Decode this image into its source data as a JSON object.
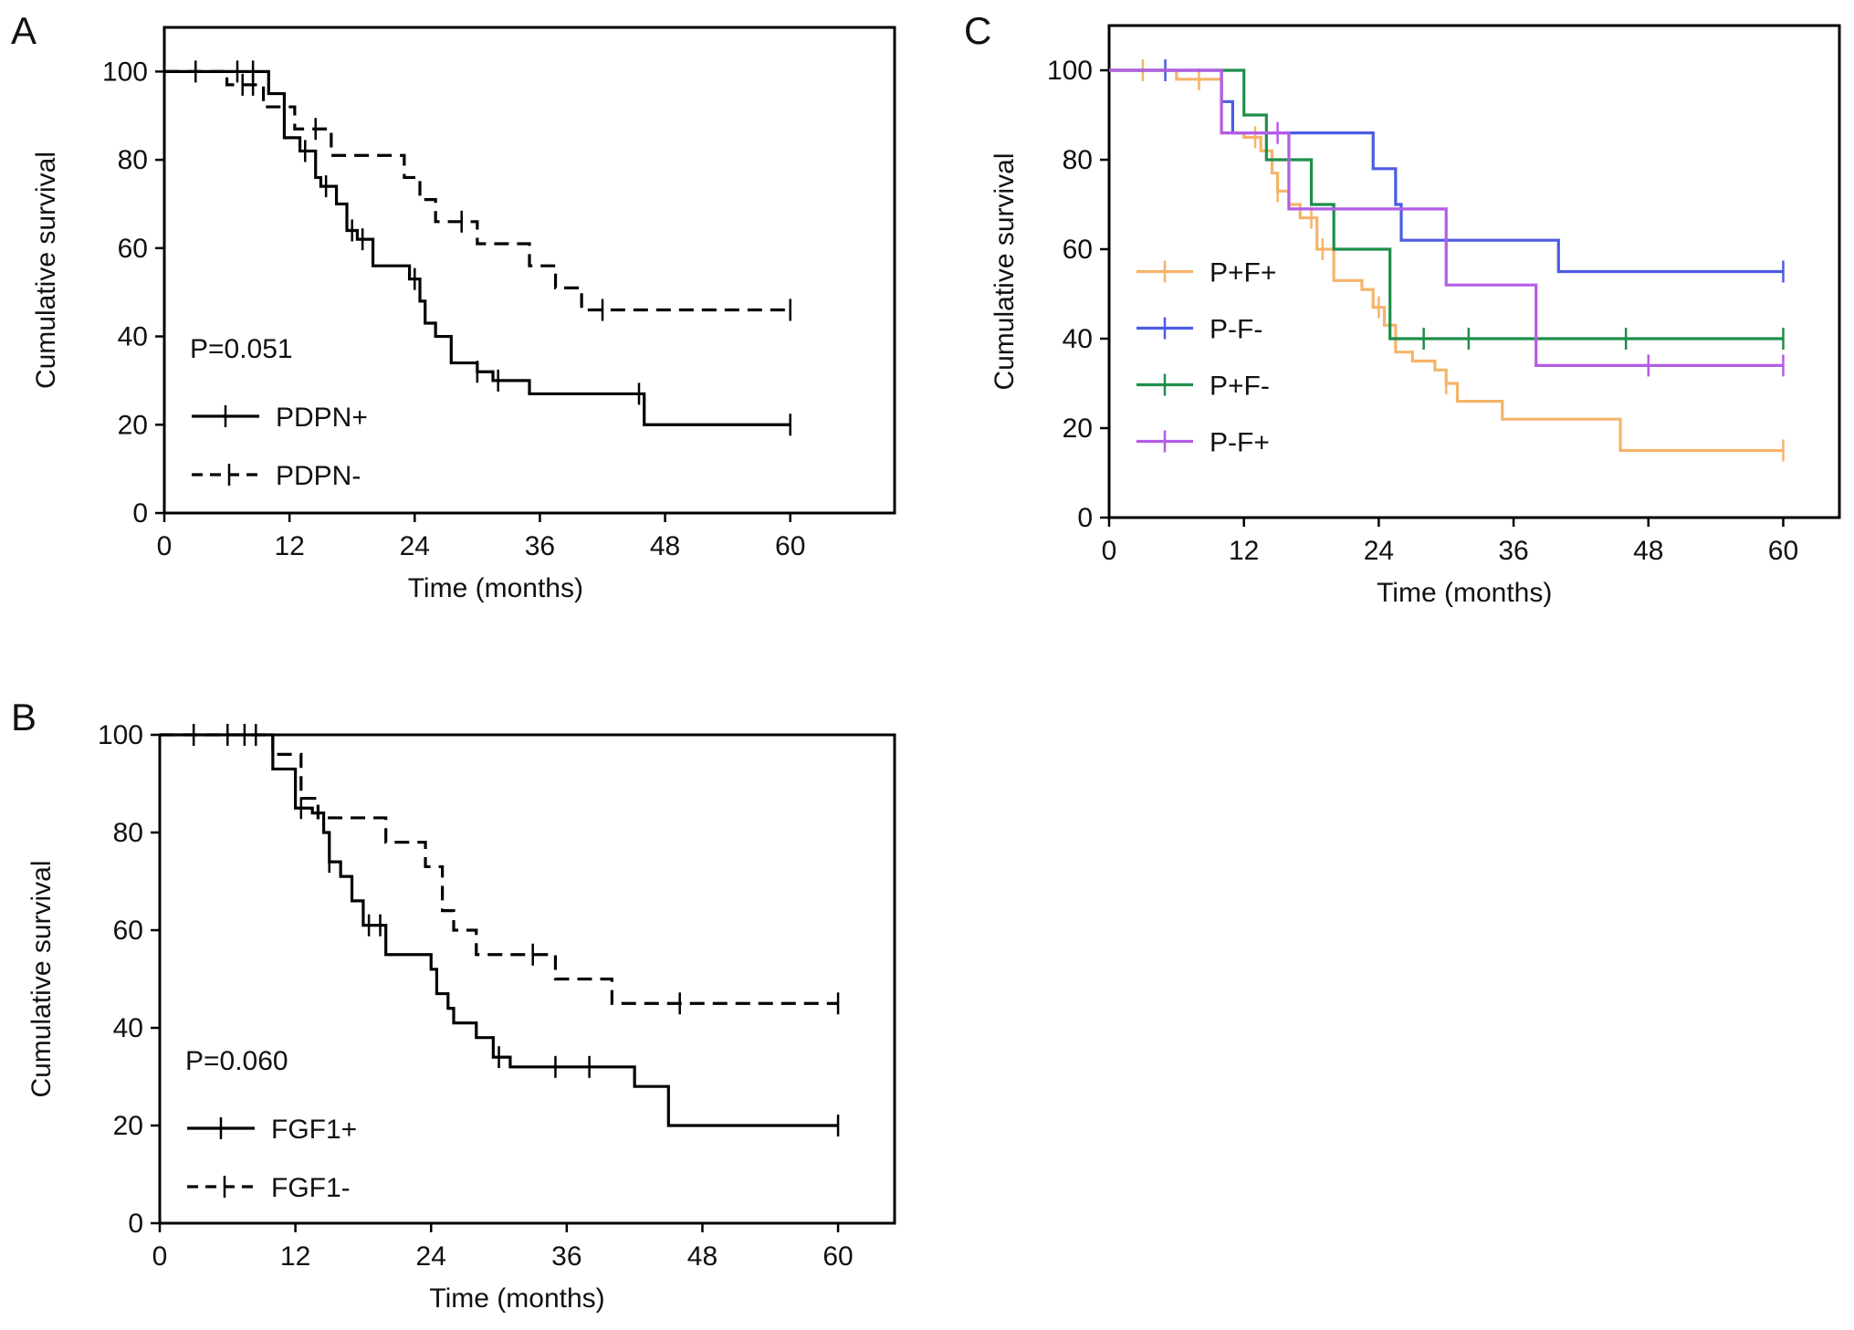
{
  "chart_data": [
    {
      "panel": "A",
      "type": "line",
      "subtype": "kaplan-meier",
      "xlabel": "Time (months)",
      "ylabel": "Cumulative survival",
      "xlim": [
        0,
        70
      ],
      "ylim": [
        0,
        110
      ],
      "xticks": [
        0,
        12,
        24,
        36,
        48,
        60
      ],
      "yticks": [
        0,
        20,
        40,
        60,
        80,
        100
      ],
      "annotation": "P=0.051",
      "legend_position": "bottom-left",
      "series": [
        {
          "name": "PDPN+",
          "color": "#000000",
          "style": "solid",
          "x": [
            0,
            10,
            11.5,
            13,
            14.5,
            15,
            16.5,
            17.5,
            18.5,
            20,
            23.5,
            24.5,
            25,
            26,
            27.5,
            30,
            31.5,
            35,
            45,
            46,
            60
          ],
          "y": [
            100,
            95,
            85,
            82,
            76,
            74,
            70,
            64,
            62,
            56,
            53,
            48,
            43,
            40,
            34,
            32,
            30,
            27,
            27,
            20,
            20
          ],
          "censored_x": [
            3,
            7,
            8.5,
            13.5,
            15.5,
            18,
            19,
            24,
            30,
            32,
            45.5,
            60
          ]
        },
        {
          "name": "PDPN-",
          "color": "#000000",
          "style": "dashed",
          "x": [
            0,
            6,
            9.5,
            12.5,
            16,
            23,
            24.5,
            26,
            30,
            35,
            37.5,
            40,
            60
          ],
          "y": [
            100,
            97,
            92,
            87,
            81,
            76,
            71,
            66,
            61,
            56,
            51,
            46,
            46
          ],
          "censored_x": [
            7.5,
            8.5,
            14.5,
            28.5,
            42,
            60
          ]
        }
      ]
    },
    {
      "panel": "B",
      "type": "line",
      "subtype": "kaplan-meier",
      "xlabel": "Time (months)",
      "ylabel": "Cumulative survival",
      "xlim": [
        0,
        65
      ],
      "ylim": [
        0,
        100
      ],
      "xticks": [
        0,
        12,
        24,
        36,
        48,
        60
      ],
      "yticks": [
        0,
        20,
        40,
        60,
        80,
        100
      ],
      "annotation": "P=0.060",
      "legend_position": "bottom-left",
      "series": [
        {
          "name": "FGF1+",
          "color": "#000000",
          "style": "solid",
          "x": [
            0,
            10,
            12,
            13.5,
            14.5,
            15,
            16,
            17,
            18,
            20,
            24,
            24.5,
            25.5,
            26,
            28,
            29.5,
            31,
            42,
            45,
            60
          ],
          "y": [
            100,
            93,
            85,
            84,
            80,
            74,
            71,
            66,
            61,
            55,
            52,
            47,
            44,
            41,
            38,
            34,
            32,
            28,
            20,
            20
          ],
          "censored_x": [
            3,
            6,
            8.5,
            12.5,
            15,
            18.5,
            19.5,
            30,
            35,
            38,
            60
          ]
        },
        {
          "name": "FGF1-",
          "color": "#000000",
          "style": "dashed",
          "x": [
            0,
            10,
            12.5,
            14,
            20,
            23.5,
            25,
            26,
            28,
            35,
            40,
            60
          ],
          "y": [
            100,
            96,
            87,
            83,
            78,
            73,
            64,
            60,
            55,
            50,
            45,
            45
          ],
          "censored_x": [
            7.5,
            33,
            46,
            60
          ]
        }
      ]
    },
    {
      "panel": "C",
      "type": "line",
      "subtype": "kaplan-meier",
      "xlabel": "Time (months)",
      "ylabel": "Cumulative survival",
      "xlim": [
        0,
        65
      ],
      "ylim": [
        0,
        110
      ],
      "xticks": [
        0,
        12,
        24,
        36,
        48,
        60
      ],
      "yticks": [
        0,
        20,
        40,
        60,
        80,
        100
      ],
      "legend_position": "left",
      "series": [
        {
          "name": "P+F+",
          "color": "#F5B46A",
          "style": "solid",
          "x": [
            0,
            6,
            10,
            12,
            13.5,
            14.5,
            15,
            16,
            17,
            18.5,
            20,
            22.5,
            23.5,
            24.5,
            25.5,
            27,
            29,
            30,
            31,
            35,
            45.5,
            60
          ],
          "y": [
            100,
            98,
            86,
            85,
            82,
            77,
            73,
            70,
            67,
            60,
            53,
            51,
            47,
            43,
            37,
            35,
            33,
            30,
            26,
            22,
            15,
            15
          ],
          "censored_x": [
            3,
            8,
            13,
            15,
            18,
            19,
            24,
            30,
            60
          ]
        },
        {
          "name": "P-F-",
          "color": "#4C5BE4",
          "style": "solid",
          "x": [
            0,
            10,
            11,
            23.5,
            25.5,
            26,
            40,
            60
          ],
          "y": [
            100,
            93,
            86,
            78,
            70,
            62,
            55,
            55
          ],
          "censored_x": [
            5,
            60
          ]
        },
        {
          "name": "P+F-",
          "color": "#1E8E4A",
          "style": "solid",
          "x": [
            0,
            12,
            14,
            18,
            20,
            25,
            60
          ],
          "y": [
            100,
            90,
            80,
            70,
            60,
            40,
            40
          ],
          "censored_x": [
            28,
            32,
            46,
            60
          ]
        },
        {
          "name": "P-F+",
          "color": "#B45CE6",
          "style": "solid",
          "x": [
            0,
            10,
            16,
            30,
            38,
            60
          ],
          "y": [
            100,
            86,
            69,
            52,
            34,
            34
          ],
          "censored_x": [
            15,
            48,
            60
          ]
        }
      ]
    }
  ],
  "panels": {
    "a": {
      "letter": "A"
    },
    "b": {
      "letter": "B"
    },
    "c": {
      "letter": "C"
    }
  }
}
